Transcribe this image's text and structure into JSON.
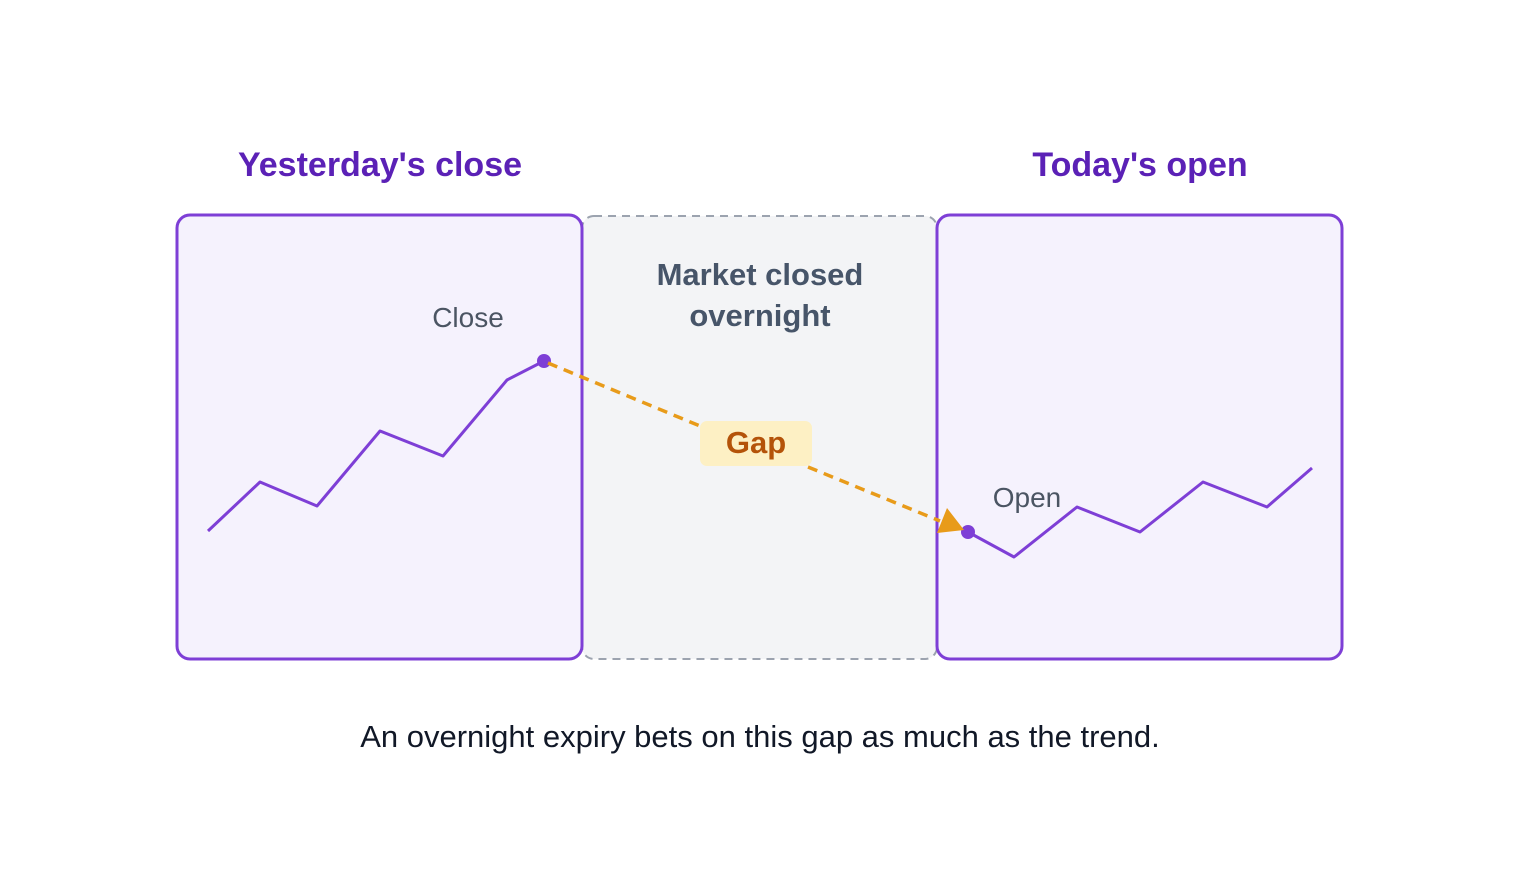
{
  "diagram": {
    "left_heading": "Yesterday's close",
    "right_heading": "Today's open",
    "middle_label_line1": "Market closed",
    "middle_label_line2": "overnight",
    "close_label": "Close",
    "open_label": "Open",
    "gap_label": "Gap",
    "caption": "An overnight expiry bets on this gap as much as the trend."
  },
  "colors": {
    "accent_purple": "#7e3fd6",
    "heading_purple": "#5b21b6",
    "panel_fill": "#f5f2fd",
    "closed_fill": "#f3f4f6",
    "closed_border": "#9ca3af",
    "gap_arrow": "#e89b1a",
    "gap_badge_fill": "#fdf0c4",
    "gap_text": "#b45309"
  }
}
